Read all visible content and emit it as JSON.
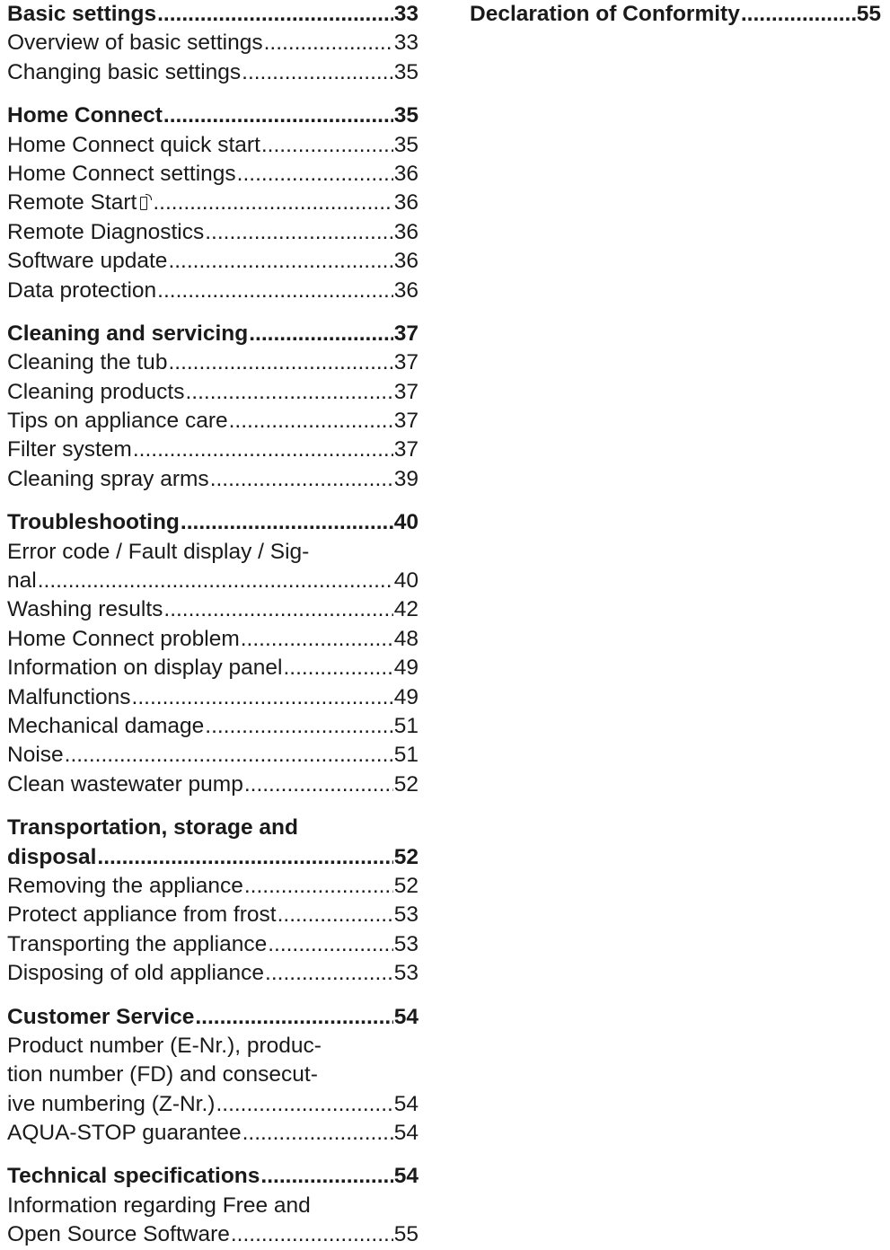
{
  "toc_left": [
    {
      "heading": {
        "text": "Basic settings",
        "page": "33"
      },
      "items": [
        {
          "text": "Overview of basic settings",
          "page": "33"
        },
        {
          "text": "Changing basic settings",
          "page": "35"
        }
      ]
    },
    {
      "heading": {
        "text": "Home Connect",
        "page": "35"
      },
      "items": [
        {
          "text": "Home Connect quick start",
          "page": "35"
        },
        {
          "text": "Home Connect settings",
          "page": "36"
        },
        {
          "text": "Remote Start",
          "page": "36",
          "icon": "remote-start-icon"
        },
        {
          "text": "Remote Diagnostics",
          "page": "36"
        },
        {
          "text": "Software update",
          "page": "36"
        },
        {
          "text": "Data protection",
          "page": "36"
        }
      ]
    },
    {
      "heading": {
        "text": "Cleaning and servicing",
        "page": "37"
      },
      "items": [
        {
          "text": "Cleaning the tub",
          "page": "37"
        },
        {
          "text": "Cleaning products",
          "page": "37"
        },
        {
          "text": "Tips on appliance care",
          "page": "37"
        },
        {
          "text": "Filter system",
          "page": "37"
        },
        {
          "text": "Cleaning spray arms",
          "page": "39"
        }
      ]
    },
    {
      "heading": {
        "text": "Troubleshooting",
        "page": "40"
      },
      "items": [
        {
          "lead": [
            "Error code / Fault display / Sig-"
          ],
          "text": "nal",
          "page": "40"
        },
        {
          "text": "Washing results",
          "page": "42"
        },
        {
          "text": "Home Connect problem",
          "page": "48"
        },
        {
          "text": "Information on display panel",
          "page": "49"
        },
        {
          "text": "Malfunctions",
          "page": "49"
        },
        {
          "text": "Mechanical damage",
          "page": "51"
        },
        {
          "text": "Noise",
          "page": "51"
        },
        {
          "text": "Clean wastewater pump",
          "page": "52"
        }
      ]
    },
    {
      "heading": {
        "lead": [
          "Transportation, storage and"
        ],
        "text": "disposal",
        "page": "52"
      },
      "items": [
        {
          "text": "Removing the appliance",
          "page": "52"
        },
        {
          "text": "Protect appliance from frost",
          "page": "53"
        },
        {
          "text": "Transporting the appliance",
          "page": "53"
        },
        {
          "text": "Disposing of old appliance",
          "page": "53"
        }
      ]
    },
    {
      "heading": {
        "text": "Customer Service",
        "page": "54"
      },
      "items": [
        {
          "lead": [
            "Product number (E-Nr.), produc-",
            "tion number (FD) and consecut-"
          ],
          "text": "ive numbering (Z-Nr.)",
          "page": "54"
        },
        {
          "text": "AQUA-STOP guarantee",
          "page": "54"
        }
      ]
    },
    {
      "heading": {
        "text": "Technical specifications",
        "page": "54"
      },
      "items": [
        {
          "lead": [
            "Information regarding Free and"
          ],
          "text": "Open Source Software",
          "page": "55"
        }
      ]
    }
  ],
  "toc_right": [
    {
      "heading": {
        "text": "Declaration of Conformity",
        "page": "55"
      },
      "items": []
    }
  ]
}
